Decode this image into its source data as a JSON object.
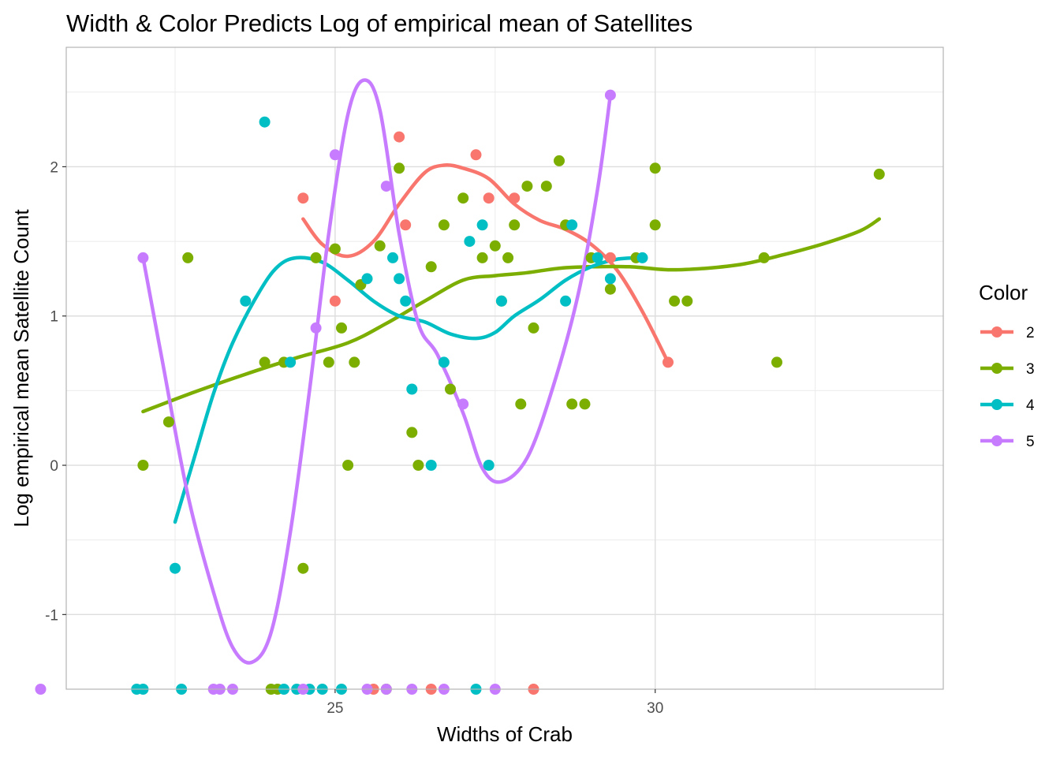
{
  "chart_data": {
    "type": "scatter",
    "title": "Width & Color Predicts Log of empirical mean of Satellites",
    "xlabel": "Widths of Crab",
    "ylabel": "Log empirical mean Satellite Count",
    "xlim": [
      20.8,
      34.5
    ],
    "ylim": [
      -1.5,
      2.8
    ],
    "x_ticks": [
      25,
      30
    ],
    "y_ticks": [
      -1,
      0,
      1,
      2
    ],
    "x_tick_labels": [
      "25",
      "30"
    ],
    "y_tick_labels": [
      "-1",
      "0",
      "1",
      "2"
    ],
    "grid": true,
    "legend": {
      "title": "Color",
      "placement": "right"
    },
    "series": [
      {
        "name": "2",
        "color": "#F8766D",
        "points": [
          [
            24.5,
            1.79
          ],
          [
            25.0,
            1.1
          ],
          [
            26.0,
            2.2
          ],
          [
            26.1,
            1.61
          ],
          [
            27.2,
            2.08
          ],
          [
            27.4,
            1.79
          ],
          [
            27.8,
            1.79
          ],
          [
            29.3,
            1.39
          ],
          [
            30.2,
            0.69
          ],
          [
            25.6,
            -1.5
          ],
          [
            26.5,
            -1.5
          ],
          [
            28.1,
            -1.5
          ]
        ],
        "smooth": [
          [
            24.5,
            1.65
          ],
          [
            24.8,
            1.48
          ],
          [
            25.2,
            1.4
          ],
          [
            25.6,
            1.5
          ],
          [
            26.0,
            1.75
          ],
          [
            26.4,
            1.96
          ],
          [
            26.7,
            2.01
          ],
          [
            27.0,
            1.99
          ],
          [
            27.4,
            1.92
          ],
          [
            27.8,
            1.75
          ],
          [
            28.2,
            1.64
          ],
          [
            28.6,
            1.58
          ],
          [
            29.0,
            1.48
          ],
          [
            29.4,
            1.31
          ],
          [
            29.8,
            1.03
          ],
          [
            30.2,
            0.69
          ]
        ]
      },
      {
        "name": "3",
        "color": "#7CAE00",
        "points": [
          [
            22.0,
            0.0
          ],
          [
            22.4,
            0.29
          ],
          [
            22.7,
            1.39
          ],
          [
            23.9,
            0.69
          ],
          [
            24.2,
            0.69
          ],
          [
            24.5,
            -0.69
          ],
          [
            24.7,
            1.39
          ],
          [
            24.9,
            0.69
          ],
          [
            25.0,
            1.45
          ],
          [
            25.1,
            0.92
          ],
          [
            25.2,
            0.0
          ],
          [
            25.3,
            0.69
          ],
          [
            25.4,
            1.21
          ],
          [
            25.7,
            1.47
          ],
          [
            26.0,
            1.99
          ],
          [
            26.2,
            0.22
          ],
          [
            26.3,
            0.0
          ],
          [
            26.5,
            1.33
          ],
          [
            26.7,
            1.61
          ],
          [
            26.8,
            0.51
          ],
          [
            27.0,
            1.79
          ],
          [
            27.3,
            1.39
          ],
          [
            27.5,
            1.47
          ],
          [
            27.6,
            1.1
          ],
          [
            27.7,
            1.39
          ],
          [
            27.8,
            1.61
          ],
          [
            27.9,
            0.41
          ],
          [
            28.0,
            1.87
          ],
          [
            28.1,
            0.92
          ],
          [
            28.3,
            1.87
          ],
          [
            28.5,
            2.04
          ],
          [
            28.6,
            1.61
          ],
          [
            28.7,
            0.41
          ],
          [
            28.9,
            0.41
          ],
          [
            29.0,
            1.39
          ],
          [
            29.3,
            1.18
          ],
          [
            29.7,
            1.39
          ],
          [
            30.0,
            1.61
          ],
          [
            30.0,
            1.99
          ],
          [
            30.3,
            1.1
          ],
          [
            30.5,
            1.1
          ],
          [
            31.7,
            1.39
          ],
          [
            31.9,
            0.69
          ],
          [
            33.5,
            1.95
          ],
          [
            24.0,
            -1.5
          ],
          [
            24.1,
            -1.5
          ],
          [
            25.8,
            -1.5
          ]
        ],
        "smooth": [
          [
            22.0,
            0.36
          ],
          [
            22.8,
            0.49
          ],
          [
            23.6,
            0.61
          ],
          [
            24.4,
            0.72
          ],
          [
            25.2,
            0.82
          ],
          [
            25.8,
            0.95
          ],
          [
            26.4,
            1.1
          ],
          [
            27.0,
            1.24
          ],
          [
            27.5,
            1.27
          ],
          [
            28.0,
            1.29
          ],
          [
            28.5,
            1.32
          ],
          [
            29.0,
            1.33
          ],
          [
            29.6,
            1.33
          ],
          [
            30.2,
            1.31
          ],
          [
            30.8,
            1.32
          ],
          [
            31.4,
            1.35
          ],
          [
            32.0,
            1.41
          ],
          [
            32.6,
            1.48
          ],
          [
            33.2,
            1.57
          ],
          [
            33.5,
            1.65
          ]
        ]
      },
      {
        "name": "4",
        "color": "#00BFC4",
        "points": [
          [
            22.5,
            -0.69
          ],
          [
            23.6,
            1.1
          ],
          [
            23.9,
            2.3
          ],
          [
            24.3,
            0.69
          ],
          [
            25.5,
            1.25
          ],
          [
            25.9,
            1.39
          ],
          [
            26.0,
            1.25
          ],
          [
            26.1,
            1.1
          ],
          [
            26.2,
            0.51
          ],
          [
            26.5,
            0.0
          ],
          [
            26.7,
            0.69
          ],
          [
            27.1,
            1.5
          ],
          [
            27.3,
            1.61
          ],
          [
            27.4,
            0.0
          ],
          [
            27.6,
            1.1
          ],
          [
            28.6,
            1.1
          ],
          [
            28.7,
            1.61
          ],
          [
            29.1,
            1.39
          ],
          [
            29.3,
            1.25
          ],
          [
            29.8,
            1.39
          ],
          [
            21.9,
            -1.5
          ],
          [
            22.0,
            -1.5
          ],
          [
            22.6,
            -1.5
          ],
          [
            24.2,
            -1.5
          ],
          [
            24.4,
            -1.5
          ],
          [
            24.6,
            -1.5
          ],
          [
            24.8,
            -1.5
          ],
          [
            25.1,
            -1.5
          ],
          [
            27.2,
            -1.5
          ]
        ],
        "smooth": [
          [
            22.5,
            -0.38
          ],
          [
            22.8,
            0.05
          ],
          [
            23.1,
            0.48
          ],
          [
            23.4,
            0.82
          ],
          [
            23.8,
            1.15
          ],
          [
            24.1,
            1.33
          ],
          [
            24.4,
            1.39
          ],
          [
            24.8,
            1.36
          ],
          [
            25.2,
            1.24
          ],
          [
            25.6,
            1.1
          ],
          [
            26.0,
            1.0
          ],
          [
            26.4,
            0.96
          ],
          [
            26.8,
            0.88
          ],
          [
            27.2,
            0.85
          ],
          [
            27.5,
            0.89
          ],
          [
            27.8,
            1.0
          ],
          [
            28.2,
            1.11
          ],
          [
            28.6,
            1.24
          ],
          [
            29.0,
            1.33
          ],
          [
            29.4,
            1.38
          ],
          [
            29.8,
            1.39
          ]
        ]
      },
      {
        "name": "5",
        "color": "#C77CFF",
        "points": [
          [
            22.0,
            1.39
          ],
          [
            24.7,
            0.92
          ],
          [
            25.0,
            2.08
          ],
          [
            25.8,
            1.87
          ],
          [
            27.0,
            0.41
          ],
          [
            29.3,
            2.48
          ],
          [
            20.4,
            -1.5
          ],
          [
            23.1,
            -1.5
          ],
          [
            23.2,
            -1.5
          ],
          [
            23.4,
            -1.5
          ],
          [
            24.5,
            -1.5
          ],
          [
            25.5,
            -1.5
          ],
          [
            25.8,
            -1.5
          ],
          [
            26.2,
            -1.5
          ],
          [
            26.7,
            -1.5
          ],
          [
            27.5,
            -1.5
          ]
        ],
        "smooth": [
          [
            22.0,
            1.39
          ],
          [
            22.3,
            0.7
          ],
          [
            22.7,
            -0.2
          ],
          [
            23.1,
            -0.85
          ],
          [
            23.4,
            -1.22
          ],
          [
            23.7,
            -1.32
          ],
          [
            24.0,
            -1.12
          ],
          [
            24.3,
            -0.45
          ],
          [
            24.6,
            0.5
          ],
          [
            24.9,
            1.55
          ],
          [
            25.2,
            2.35
          ],
          [
            25.45,
            2.58
          ],
          [
            25.7,
            2.38
          ],
          [
            26.0,
            1.55
          ],
          [
            26.3,
            0.95
          ],
          [
            26.6,
            0.74
          ],
          [
            27.0,
            0.35
          ],
          [
            27.3,
            -0.02
          ],
          [
            27.6,
            -0.11
          ],
          [
            28.0,
            0.05
          ],
          [
            28.4,
            0.52
          ],
          [
            28.8,
            1.15
          ],
          [
            29.1,
            1.85
          ],
          [
            29.3,
            2.48
          ]
        ]
      }
    ]
  }
}
